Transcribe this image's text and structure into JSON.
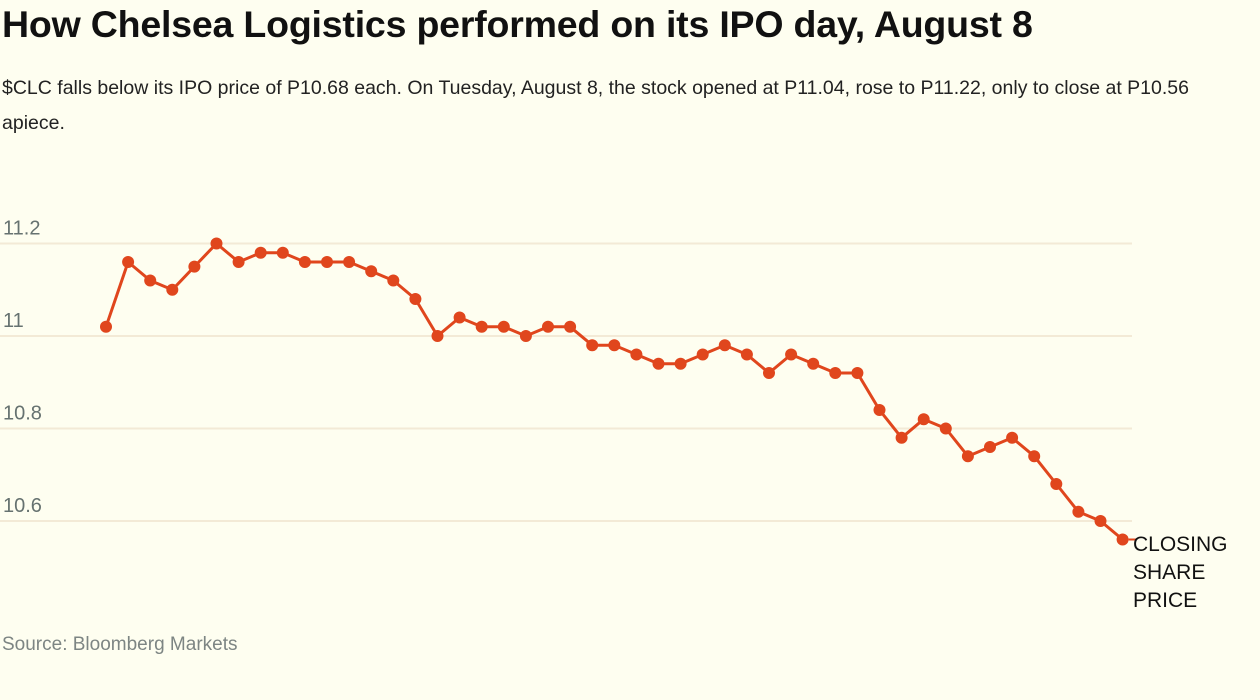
{
  "title": "How Chelsea Logistics performed on its IPO day, August 8",
  "subtitle": "$CLC falls below its IPO price of P10.68 each. On Tuesday, August 8, the stock opened at P11.04, rose to P11.22, only to close at P10.56 apiece.",
  "source": "Source: Bloomberg Markets",
  "colors": {
    "line": "#e0461d",
    "grid": "#f3ead6",
    "background": "#fefef0",
    "tick_text": "#667270"
  },
  "chart_data": {
    "type": "line",
    "title": "How Chelsea Logistics performed on its IPO day, August 8",
    "xlabel": "",
    "ylabel": "",
    "ylim": [
      10.46,
      11.26
    ],
    "y_ticks": [
      11.2,
      11,
      10.8,
      10.6
    ],
    "y_tick_labels": [
      "11.2",
      "11",
      "10.8",
      "10.6"
    ],
    "grid": "horizontal",
    "series": [
      {
        "name": "CLOSING SHARE PRICE",
        "label_lines": [
          "CLOSING",
          "SHARE",
          "PRICE"
        ],
        "values": [
          11.02,
          11.16,
          11.12,
          11.1,
          11.15,
          11.2,
          11.16,
          11.18,
          11.18,
          11.16,
          11.16,
          11.16,
          11.14,
          11.12,
          11.08,
          11.0,
          11.04,
          11.02,
          11.02,
          11.0,
          11.02,
          11.02,
          10.98,
          10.98,
          10.96,
          10.94,
          10.94,
          10.96,
          10.98,
          10.96,
          10.92,
          10.96,
          10.94,
          10.92,
          10.92,
          10.84,
          10.78,
          10.82,
          10.8,
          10.74,
          10.76,
          10.78,
          10.74,
          10.68,
          10.62,
          10.6,
          10.56
        ]
      }
    ]
  }
}
